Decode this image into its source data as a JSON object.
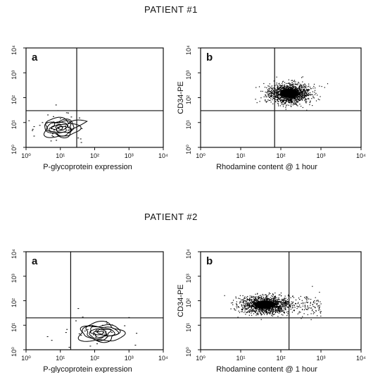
{
  "patients": [
    {
      "title": "PATIENT #1"
    },
    {
      "title": "PATIENT #2"
    }
  ],
  "chart_data": [
    {
      "panel": "a",
      "patient": "PATIENT #1",
      "type": "contour",
      "xlabel": "P-glycoprotein  expression",
      "ylabel": "",
      "x_scale": "log",
      "y_scale": "log",
      "xlim": [
        1,
        10000
      ],
      "ylim": [
        1,
        10000
      ],
      "tick_labels_x": [
        "10⁰",
        "10¹",
        "10²",
        "10³",
        "10⁴"
      ],
      "tick_labels_y": [
        "10⁰",
        "10¹",
        "10²",
        "10³",
        "10⁴"
      ],
      "quadrant_gate": {
        "x": 30,
        "y": 30
      },
      "population": {
        "center_x": 10,
        "center_y": 6,
        "spread_x_decades": 0.35,
        "spread_y_decades": 0.3,
        "tail_to_x": 60
      }
    },
    {
      "panel": "b",
      "patient": "PATIENT #1",
      "type": "scatter",
      "xlabel": "Rhodamine content @ 1 hour",
      "ylabel": "CD34-PE",
      "x_scale": "log",
      "y_scale": "log",
      "xlim": [
        1,
        10000
      ],
      "ylim": [
        1,
        10000
      ],
      "tick_labels_x": [
        "10⁰",
        "10¹",
        "10²",
        "10³",
        "10⁴"
      ],
      "tick_labels_y": [
        "10⁰",
        "10¹",
        "10²",
        "10³",
        "10⁴"
      ],
      "quadrant_gate": {
        "x": 70,
        "y": 30
      },
      "population": {
        "center_x": 160,
        "center_y": 150,
        "spread_x_decades": 0.25,
        "spread_y_decades": 0.2
      }
    },
    {
      "panel": "a",
      "patient": "PATIENT #2",
      "type": "contour",
      "xlabel": "P-glycoprotein  expression",
      "ylabel": "",
      "x_scale": "log",
      "y_scale": "log",
      "xlim": [
        1,
        10000
      ],
      "ylim": [
        1,
        10000
      ],
      "tick_labels_x": [
        "10⁰",
        "10¹",
        "10²",
        "10³",
        "10⁴"
      ],
      "tick_labels_y": [
        "10⁰",
        "10¹",
        "10²",
        "10³",
        "10⁴"
      ],
      "quadrant_gate": {
        "x": 20,
        "y": 20
      },
      "population": {
        "center_x": 150,
        "center_y": 5,
        "spread_x_decades": 0.45,
        "spread_y_decades": 0.3
      }
    },
    {
      "panel": "b",
      "patient": "PATIENT #2",
      "type": "scatter",
      "xlabel": "Rhodamine content @ 1 hour",
      "ylabel": "CD34-PE",
      "x_scale": "log",
      "y_scale": "log",
      "xlim": [
        1,
        10000
      ],
      "ylim": [
        1,
        10000
      ],
      "tick_labels_x": [
        "10⁰",
        "10¹",
        "10²",
        "10³",
        "10⁴"
      ],
      "tick_labels_y": [
        "10⁰",
        "10¹",
        "10²",
        "10³",
        "10⁴"
      ],
      "quadrant_gate": {
        "x": 160,
        "y": 20
      },
      "population": {
        "center_x": 40,
        "center_y": 70,
        "spread_x_decades": 0.3,
        "spread_y_decades": 0.18,
        "tail_to_x": 1000
      }
    }
  ]
}
